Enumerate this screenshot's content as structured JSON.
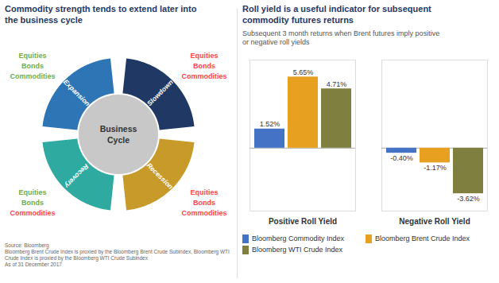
{
  "chart_data": [
    {
      "type": "cycle",
      "title": "Commodity strength tends to extend later into\nthe business cycle",
      "center_label": "Business\nCycle",
      "series": [
        {
          "name": "Expansion",
          "color": "#2E75B6",
          "labels": [
            {
              "text": "Equities",
              "color": "#70AD47"
            },
            {
              "text": "Bonds",
              "color": "#70AD47"
            },
            {
              "text": "Commodities",
              "color": "#70AD47"
            }
          ]
        },
        {
          "name": "Slowdown",
          "color": "#1F3864",
          "labels": [
            {
              "text": "Equities",
              "color": "#FF4444"
            },
            {
              "text": "Bonds",
              "color": "#FF4444"
            },
            {
              "text": "Commodities",
              "color": "#FF4444"
            }
          ]
        },
        {
          "name": "Recession",
          "color": "#C89A2A",
          "labels": [
            {
              "text": "Equities",
              "color": "#FF4444"
            },
            {
              "text": "Bonds",
              "color": "#FF4444"
            },
            {
              "text": "Commodities",
              "color": "#FF4444"
            }
          ]
        },
        {
          "name": "Recovery",
          "color": "#2EAAA0",
          "labels": [
            {
              "text": "Equities",
              "color": "#70AD47"
            },
            {
              "text": "Bonds",
              "color": "#70AD47"
            },
            {
              "text": "Commodities",
              "color": "#FF4444"
            }
          ]
        }
      ],
      "caption": "Source: Bloomberg\nBloomberg Brent Crude Index is proxied by the Bloomberg Brent Crude Subindex, Bloomberg WTI Crude Index is proxied by the Bloomberg WTI Crude Subindex\nAs of 31 December 2017"
    },
    {
      "type": "bar",
      "title": "Roll yield is a useful indicator for subsequent\ncommodity futures returns",
      "subtitle": "Subsequent 3 month returns when Brent futures imply positive\nor negative roll yields",
      "categories": [
        "Positive Roll Yield",
        "Negative Roll Yield"
      ],
      "series": [
        {
          "name": "Bloomberg Commodity Index",
          "color": "#4472C4",
          "values": [
            1.52,
            -0.4
          ],
          "value_labels": [
            "1.52%",
            "-0.40%"
          ]
        },
        {
          "name": "Bloomberg Brent Crude Index",
          "color": "#E8A020",
          "values": [
            5.65,
            -1.17
          ],
          "value_labels": [
            "5.65%",
            "-1.17%"
          ]
        },
        {
          "name": "Bloomberg WTI Crude Index",
          "color": "#7F7F3F",
          "values": [
            4.71,
            -3.62
          ],
          "value_labels": [
            "4.71%",
            "-3.62%"
          ]
        }
      ],
      "ylim": [
        -5,
        7
      ],
      "data_labels": true,
      "tick_labels": "x",
      "legend": "bottom"
    }
  ]
}
